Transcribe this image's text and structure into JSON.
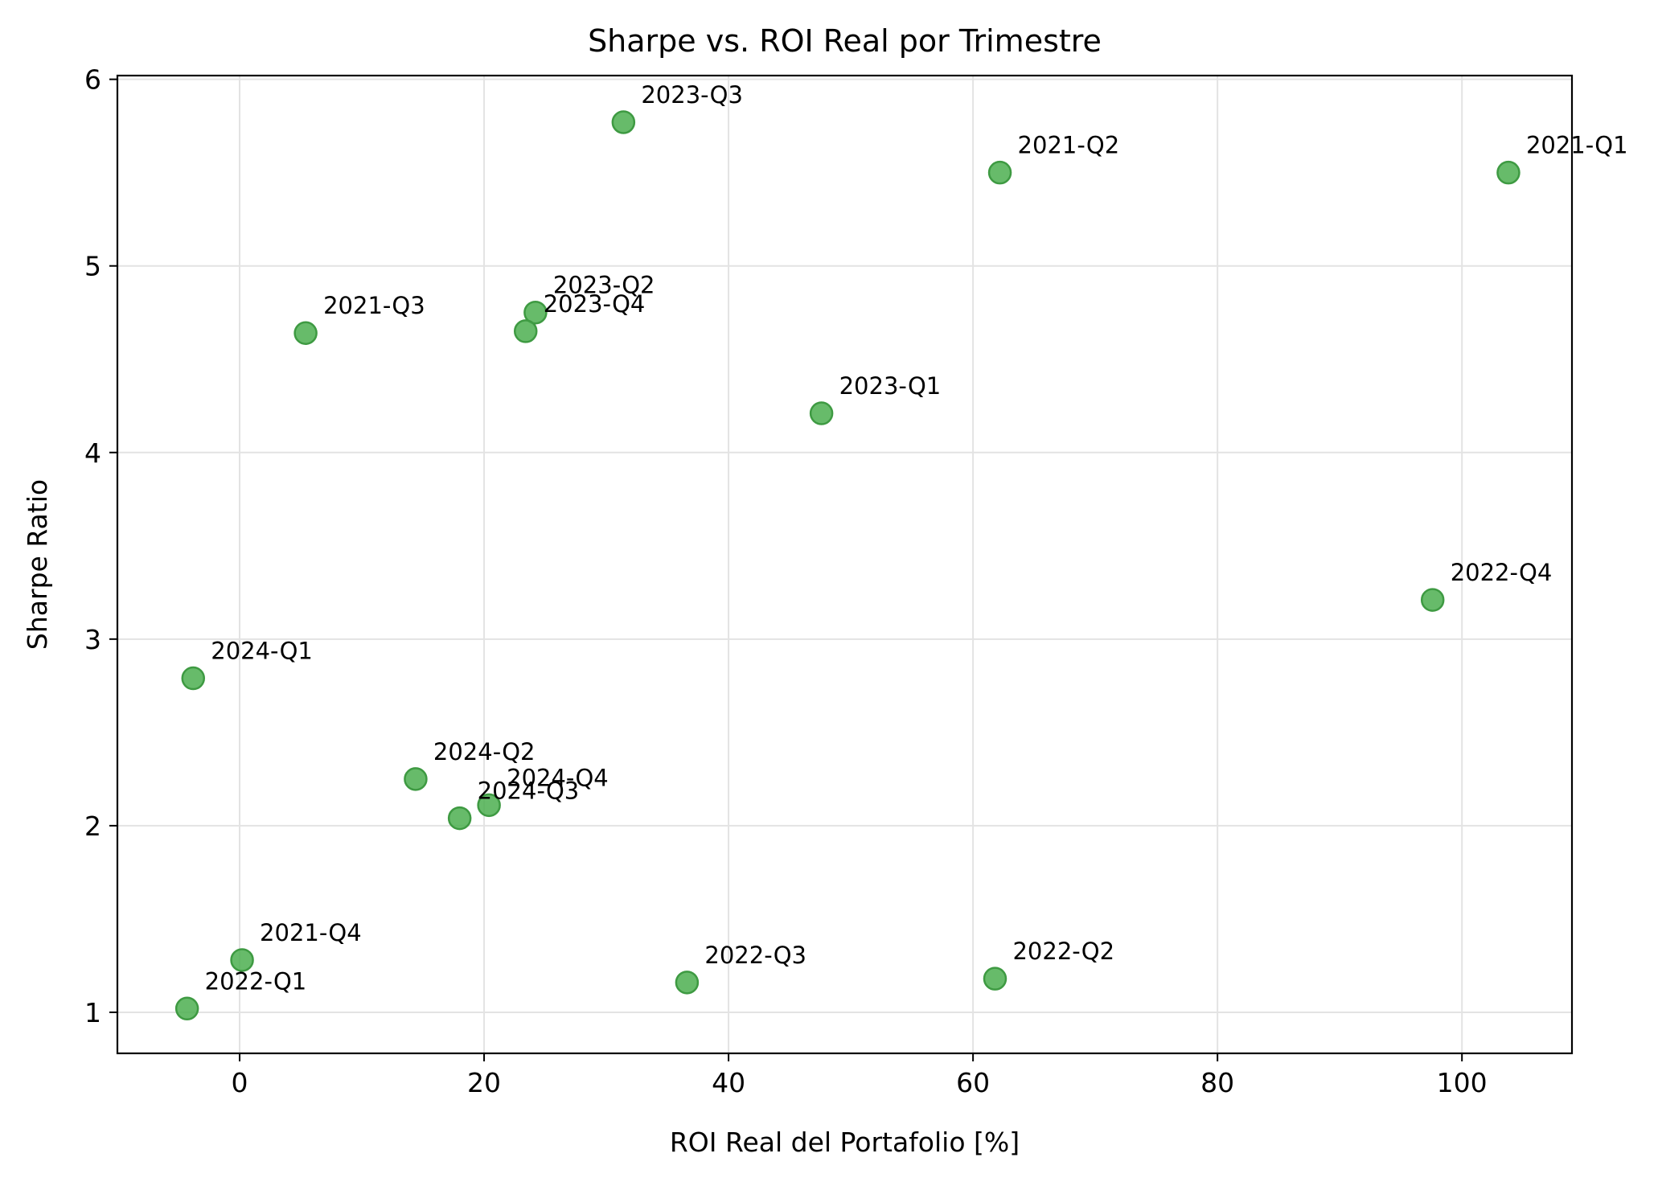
{
  "chart_data": {
    "type": "scatter",
    "title": "Sharpe vs. ROI Real por Trimestre",
    "xlabel": "ROI Real del Portafolio [%]",
    "ylabel": "Sharpe Ratio",
    "xlim": [
      -10,
      109
    ],
    "ylim": [
      0.78,
      6.02
    ],
    "xticks": [
      0,
      20,
      40,
      60,
      80,
      100
    ],
    "yticks": [
      1,
      2,
      3,
      4,
      5,
      6
    ],
    "grid": true,
    "legend": "none",
    "marker_color": "#4caf50",
    "marker_edge_color": "#3e9a42",
    "points": [
      {
        "label": "2021-Q1",
        "x": 103.8,
        "y": 5.5
      },
      {
        "label": "2021-Q2",
        "x": 62.2,
        "y": 5.5
      },
      {
        "label": "2021-Q3",
        "x": 5.4,
        "y": 4.64
      },
      {
        "label": "2021-Q4",
        "x": 0.2,
        "y": 1.28
      },
      {
        "label": "2022-Q1",
        "x": -4.3,
        "y": 1.02
      },
      {
        "label": "2022-Q2",
        "x": 61.8,
        "y": 1.18
      },
      {
        "label": "2022-Q3",
        "x": 36.6,
        "y": 1.16
      },
      {
        "label": "2022-Q4",
        "x": 97.6,
        "y": 3.21
      },
      {
        "label": "2023-Q1",
        "x": 47.6,
        "y": 4.21
      },
      {
        "label": "2023-Q2",
        "x": 24.2,
        "y": 4.75
      },
      {
        "label": "2023-Q3",
        "x": 31.4,
        "y": 5.77
      },
      {
        "label": "2023-Q4",
        "x": 23.4,
        "y": 4.65
      },
      {
        "label": "2024-Q1",
        "x": -3.8,
        "y": 2.79
      },
      {
        "label": "2024-Q2",
        "x": 14.4,
        "y": 2.25
      },
      {
        "label": "2024-Q3",
        "x": 18.0,
        "y": 2.04
      },
      {
        "label": "2024-Q4",
        "x": 20.4,
        "y": 2.11
      }
    ]
  }
}
